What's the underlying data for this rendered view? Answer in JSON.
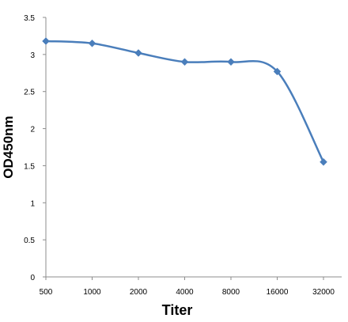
{
  "chart_data": {
    "type": "line",
    "x": [
      "500",
      "1000",
      "2000",
      "4000",
      "8000",
      "16000",
      "32000"
    ],
    "series": [
      {
        "values": [
          3.18,
          3.15,
          3.02,
          2.9,
          2.9,
          2.77,
          1.55
        ]
      }
    ],
    "xlabel": "Titer",
    "ylabel": "OD450nm",
    "ylim": [
      0,
      3.5
    ],
    "yticks": [
      "0",
      "0.5",
      "1",
      "1.5",
      "2",
      "2.5",
      "3",
      "3.5"
    ],
    "grid": false,
    "smooth": true,
    "line_color": "#4a7ebb",
    "marker": "diamond"
  }
}
